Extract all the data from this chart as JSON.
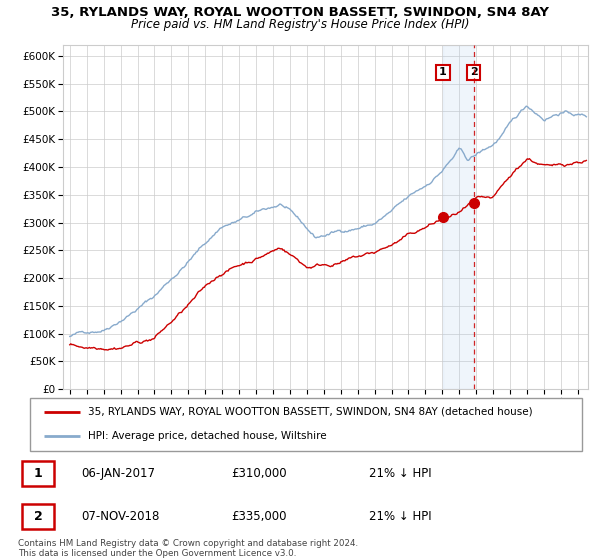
{
  "title1": "35, RYLANDS WAY, ROYAL WOOTTON BASSETT, SWINDON, SN4 8AY",
  "title2": "Price paid vs. HM Land Registry's House Price Index (HPI)",
  "legend_red": "35, RYLANDS WAY, ROYAL WOOTTON BASSETT, SWINDON, SN4 8AY (detached house)",
  "legend_blue": "HPI: Average price, detached house, Wiltshire",
  "transaction1_date": "06-JAN-2017",
  "transaction1_price": "£310,000",
  "transaction1_hpi": "21% ↓ HPI",
  "transaction2_date": "07-NOV-2018",
  "transaction2_price": "£335,000",
  "transaction2_hpi": "21% ↓ HPI",
  "footer": "Contains HM Land Registry data © Crown copyright and database right 2024.\nThis data is licensed under the Open Government Licence v3.0.",
  "ylim": [
    0,
    620000
  ],
  "yticks": [
    0,
    50000,
    100000,
    150000,
    200000,
    250000,
    300000,
    350000,
    400000,
    450000,
    500000,
    550000,
    600000
  ],
  "background_color": "#ffffff",
  "grid_color": "#cccccc",
  "red_color": "#cc0000",
  "blue_color": "#88aacc",
  "marker1_x": 2017.04,
  "marker1_y": 310000,
  "marker2_x": 2018.85,
  "marker2_y": 335000,
  "vline2_x": 2018.85,
  "shade_x1": 2017.04,
  "shade_x2": 2018.85,
  "xlim_left": 1994.6,
  "xlim_right": 2025.6
}
